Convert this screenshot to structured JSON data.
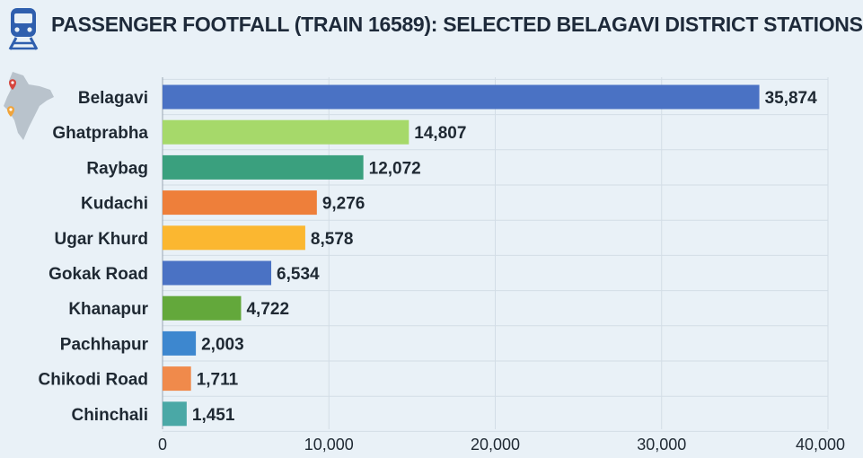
{
  "header": {
    "title": "PASSENGER FOOTFALL (TRAIN 16589): SELECTED BELAGAVI DISTRICT STATIONS",
    "icon": "train-icon"
  },
  "decor": {
    "map_icon": "india-map-pin-icon"
  },
  "colors": {
    "background": "#e9f1f7",
    "grid": "#d3dde6",
    "text": "#1f2933"
  },
  "chart_data": {
    "type": "bar",
    "orientation": "horizontal",
    "title": "PASSENGER FOOTFALL (TRAIN 16589): SELECTED BELAGAVI DISTRICT STATIONS",
    "categories": [
      "Belagavi",
      "Ghatprabha",
      "Raybag",
      "Kudachi",
      "Ugar Khurd",
      "Gokak Road",
      "Khanapur",
      "Pachhapur",
      "Chikodi Road",
      "Chinchali"
    ],
    "values": [
      35874,
      14807,
      12072,
      9276,
      8578,
      6534,
      4722,
      2003,
      1711,
      1451
    ],
    "value_labels": [
      "35,874",
      "14,807",
      "12,072",
      "9,276",
      "8,578",
      "6,534",
      "4,722",
      "2,003",
      "1,711",
      "1,451"
    ],
    "bar_colors": [
      "#4a72c4",
      "#a6d96a",
      "#3aa07e",
      "#ee7f3a",
      "#fbb730",
      "#4a72c4",
      "#63a83b",
      "#3d87cf",
      "#f08a4b",
      "#4aa8a6"
    ],
    "xlim": [
      0,
      40000
    ],
    "xticks": [
      0,
      10000,
      20000,
      30000,
      40000
    ],
    "xtick_labels": [
      "0",
      "10,000",
      "20,000",
      "30,000",
      "40,000"
    ],
    "grid": true,
    "legend": false
  }
}
